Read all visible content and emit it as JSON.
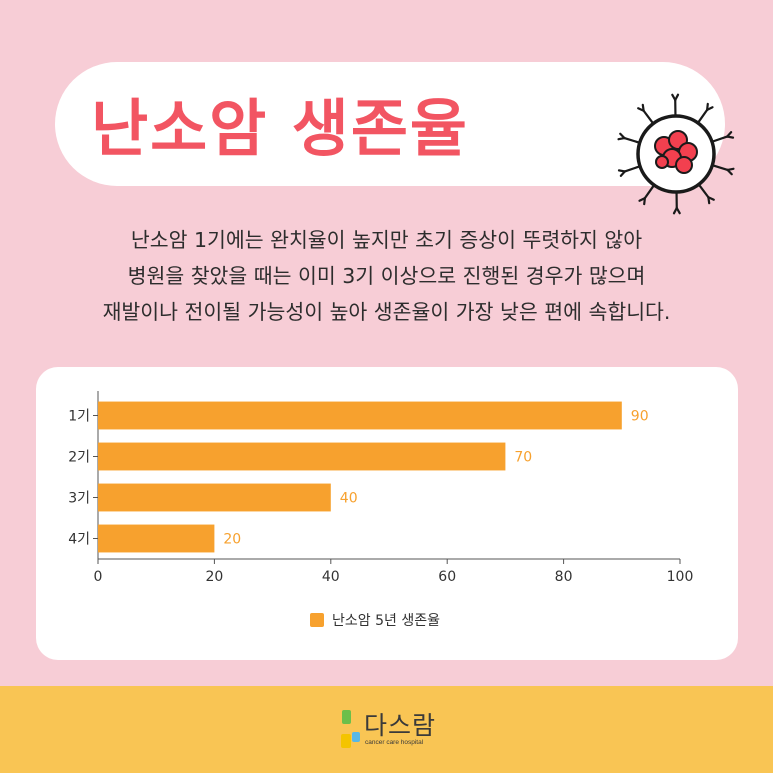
{
  "title": "난소암 생존율",
  "description": [
    "난소암 1기에는 완치율이 높지만 초기 증상이 뚜렷하지 않아",
    "병원을 찾았을 때는 이미 3기 이상으로 진행된 경우가 많으며",
    "재발이나 전이될 가능성이 높아 생존율이 가장 낮은 편에 속합니다."
  ],
  "icon": "cancer-cell-icon",
  "colors": {
    "background": "#f7cdd6",
    "title": "#f25562",
    "bar": "#f7a12e",
    "footer": "#f9c554"
  },
  "chart_data": {
    "type": "bar",
    "orientation": "horizontal",
    "categories": [
      "1기",
      "2기",
      "3기",
      "4기"
    ],
    "series": [
      {
        "name": "난소암 5년 생존율",
        "values": [
          90,
          70,
          40,
          20
        ]
      }
    ],
    "xlim": [
      0,
      100
    ],
    "xticks": [
      "0",
      "20",
      "40",
      "60",
      "80",
      "100"
    ],
    "data_labels": true,
    "grid": false,
    "legend_position": "bottom"
  },
  "footer": {
    "logo_name": "다스람",
    "logo_sub": "cancer care hospital"
  }
}
